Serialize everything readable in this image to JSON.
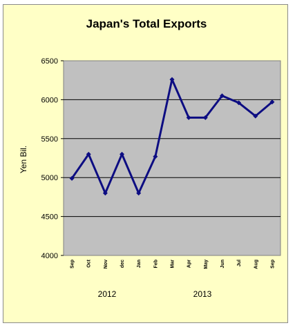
{
  "chart_data": {
    "type": "line",
    "title": "Japan's  Total Exports",
    "ylabel": "Yen Bil.",
    "xlabel": "",
    "categories": [
      "Sep",
      "Oct",
      "Nov",
      "dec",
      "Jan",
      "Feb",
      "Mar",
      "Apr",
      "May",
      "Jun",
      "Jul",
      "Aug",
      "Sep"
    ],
    "series": [
      {
        "values": [
          4990,
          5300,
          4800,
          5300,
          4800,
          5270,
          6260,
          5770,
          5770,
          6050,
          5960,
          5790,
          5970
        ]
      }
    ],
    "ylim": [
      4000,
      6500
    ],
    "yticks": [
      4000,
      4500,
      5000,
      5500,
      6000,
      6500
    ],
    "year_labels": [
      "2012",
      "2013"
    ],
    "grid": true,
    "colors": {
      "line": "#0D0D82",
      "plot_bg": "#C0C0C0",
      "frame_bg": "#FFFFC6",
      "grid": "#000000"
    }
  }
}
